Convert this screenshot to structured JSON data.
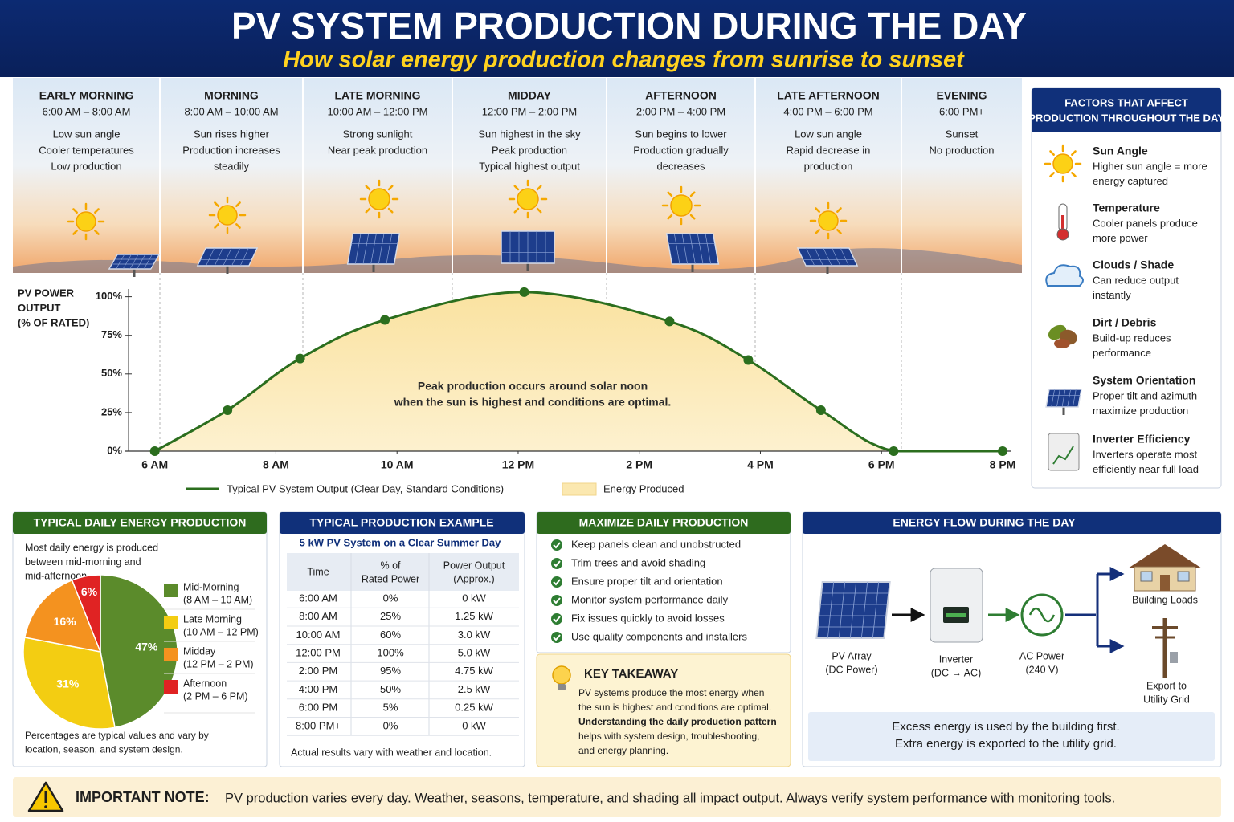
{
  "header": {
    "title": "PV SYSTEM PRODUCTION DURING THE DAY",
    "subtitle": "How solar energy production changes from sunrise to sunset"
  },
  "periods": [
    {
      "name": "EARLY MORNING",
      "time": "6:00 AM – 8:00 AM",
      "lines": [
        "Low sun angle",
        "Cooler temperatures",
        "Low production"
      ]
    },
    {
      "name": "MORNING",
      "time": "8:00 AM – 10:00 AM",
      "lines": [
        "Sun rises higher",
        "Production increases",
        "steadily"
      ]
    },
    {
      "name": "LATE MORNING",
      "time": "10:00 AM – 12:00 PM",
      "lines": [
        "Strong sunlight",
        "Near peak production"
      ]
    },
    {
      "name": "MIDDAY",
      "time": "12:00 PM – 2:00 PM",
      "lines": [
        "Sun highest in the sky",
        "Peak production",
        "Typical highest output"
      ]
    },
    {
      "name": "AFTERNOON",
      "time": "2:00 PM – 4:00 PM",
      "lines": [
        "Sun begins to lower",
        "Production gradually",
        "decreases"
      ]
    },
    {
      "name": "LATE AFTERNOON",
      "time": "4:00 PM – 6:00 PM",
      "lines": [
        "Low sun angle",
        "Rapid decrease in",
        "production"
      ]
    },
    {
      "name": "EVENING",
      "time": "6:00 PM+",
      "lines": [
        "Sunset",
        "No production"
      ]
    }
  ],
  "chart_data": [
    {
      "type": "line",
      "y_label": [
        "PV POWER",
        "OUTPUT",
        "(% OF RATED)"
      ],
      "annotation": [
        "Peak production occurs around solar noon",
        "when the sun is highest and conditions are optimal."
      ],
      "x": [
        6,
        7.2,
        8.4,
        9.8,
        12.1,
        14.5,
        15.8,
        17,
        18.2,
        20
      ],
      "series": [
        {
          "name": "Typical PV System Output (Clear Day, Standard Conditions)",
          "color": "#2b6e1e",
          "values": [
            0,
            26.5,
            60,
            85,
            103,
            84,
            59,
            26.5,
            0,
            0
          ]
        }
      ],
      "area": {
        "name": "Energy Produced",
        "color": "#fbe8b0"
      },
      "xlim": [
        5.5,
        20
      ],
      "ylim": [
        0,
        105
      ],
      "xticks": [
        {
          "value": 6,
          "label": "6 AM"
        },
        {
          "value": 8,
          "label": "8 AM"
        },
        {
          "value": 10,
          "label": "10 AM"
        },
        {
          "value": 12,
          "label": "12 PM"
        },
        {
          "value": 14,
          "label": "2 PM"
        },
        {
          "value": 16,
          "label": "4 PM"
        },
        {
          "value": 18,
          "label": "6 PM"
        },
        {
          "value": 20,
          "label": "8 PM"
        }
      ],
      "yticks": [
        {
          "value": 0,
          "label": "0%"
        },
        {
          "value": 25,
          "label": "25%"
        },
        {
          "value": 50,
          "label": "50%"
        },
        {
          "value": 75,
          "label": "75%"
        },
        {
          "value": 100,
          "label": "100%"
        }
      ],
      "grid": false
    },
    {
      "type": "pie",
      "title": "TYPICAL DAILY ENERGY PRODUCTION",
      "description": [
        "Most daily energy is produced",
        "between mid-morning and",
        "mid-afternoon."
      ],
      "categories": [
        "Mid-Morning",
        "Late Morning",
        "Midday",
        "Afternoon"
      ],
      "category_ranges": [
        "(8 AM – 10 AM)",
        "(10 AM – 12 PM)",
        "(12 PM – 2 PM)",
        "(2 PM – 6 PM)"
      ],
      "values": [
        47,
        31,
        16,
        6
      ],
      "value_labels": [
        "47%",
        "31%",
        "16%",
        "6%"
      ],
      "colors": [
        "#5b8b2b",
        "#f3cd12",
        "#f4921f",
        "#e02323"
      ],
      "note": [
        "Percentages are typical values and vary by",
        "location, season, and system design."
      ]
    }
  ],
  "factors": {
    "title": [
      "FACTORS THAT AFFECT",
      "PRODUCTION THROUGHOUT THE DAY"
    ],
    "items": [
      {
        "name": "Sun Angle",
        "lines": [
          "Higher sun angle = more",
          "energy captured"
        ]
      },
      {
        "name": "Temperature",
        "lines": [
          "Cooler panels produce",
          "more power"
        ]
      },
      {
        "name": "Clouds / Shade",
        "lines": [
          "Can reduce output",
          "instantly"
        ]
      },
      {
        "name": "Dirt / Debris",
        "lines": [
          "Build-up reduces",
          "performance"
        ]
      },
      {
        "name": "System Orientation",
        "lines": [
          "Proper tilt and azimuth",
          "maximize production"
        ]
      },
      {
        "name": "Inverter Efficiency",
        "lines": [
          "Inverters operate most",
          "efficiently near full load"
        ]
      }
    ]
  },
  "production_example": {
    "title": "TYPICAL PRODUCTION EXAMPLE",
    "subtitle": "5 kW PV System on a Clear Summer Day",
    "columns": [
      [
        "Time"
      ],
      [
        "% of",
        "Rated Power"
      ],
      [
        "Power Output",
        "(Approx.)"
      ]
    ],
    "rows": [
      [
        "6:00 AM",
        "0%",
        "0 kW"
      ],
      [
        "8:00 AM",
        "25%",
        "1.25 kW"
      ],
      [
        "10:00 AM",
        "60%",
        "3.0 kW"
      ],
      [
        "12:00 PM",
        "100%",
        "5.0 kW"
      ],
      [
        "2:00 PM",
        "95%",
        "4.75 kW"
      ],
      [
        "4:00 PM",
        "50%",
        "2.5 kW"
      ],
      [
        "6:00 PM",
        "5%",
        "0.25 kW"
      ],
      [
        "8:00 PM+",
        "0%",
        "0 kW"
      ]
    ],
    "footnote": "Actual results vary with weather and location."
  },
  "maximize": {
    "title": "MAXIMIZE DAILY PRODUCTION",
    "items": [
      "Keep panels clean and unobstructed",
      "Trim trees and avoid shading",
      "Ensure proper tilt and orientation",
      "Monitor system performance daily",
      "Fix issues quickly to avoid losses",
      "Use quality components and installers"
    ]
  },
  "takeaway": {
    "title": "KEY TAKEAWAY",
    "lines": [
      "PV systems produce the most energy when",
      "the sun is highest and conditions are optimal.",
      "Understanding the daily production pattern",
      "helps with system design, troubleshooting,",
      "and energy planning."
    ]
  },
  "energy_flow": {
    "title": "ENERGY FLOW DURING THE DAY",
    "nodes": [
      {
        "lines": [
          "PV Array",
          "(DC Power)"
        ]
      },
      {
        "lines": [
          "Inverter",
          "(DC → AC)"
        ]
      },
      {
        "lines": [
          "AC Power",
          "(240 V)"
        ]
      },
      {
        "lines": [
          "Building Loads"
        ]
      },
      {
        "lines": [
          "Export to",
          "Utility Grid"
        ]
      }
    ],
    "summary": [
      "Excess energy is used by the building first.",
      "Extra energy is exported to the utility grid."
    ]
  },
  "note": {
    "label": "IMPORTANT NOTE:",
    "text": "PV production varies every day. Weather, seasons, temperature, and shading all impact output. Always verify system performance with monitoring tools."
  }
}
